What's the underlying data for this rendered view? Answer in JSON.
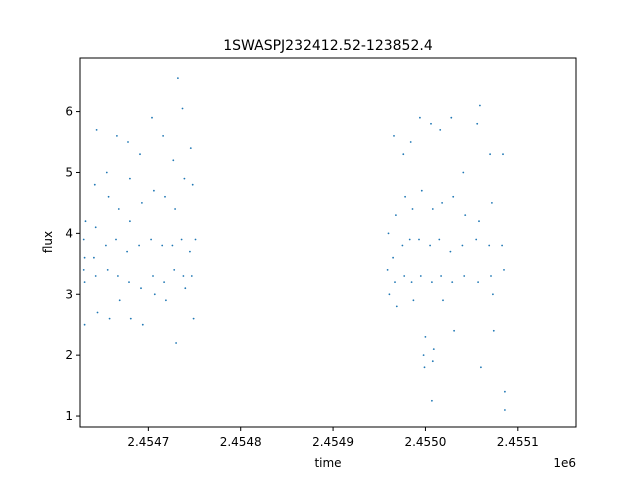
{
  "chart_data": {
    "type": "scatter",
    "title": "1SWASPJ232412.52-123852.4",
    "xlabel": "time",
    "ylabel": "flux",
    "x_offset_label": "1e6",
    "xlim": [
      2454626,
      2455163
    ],
    "ylim": [
      0.82,
      6.88
    ],
    "x_ticks": [
      2454700,
      2454800,
      2454900,
      2455000,
      2455100
    ],
    "x_tick_labels": [
      "2.4547",
      "2.4548",
      "2.4549",
      "2.4550",
      "2.4551"
    ],
    "y_ticks": [
      1,
      2,
      3,
      4,
      5,
      6
    ],
    "y_tick_labels": [
      "1",
      "2",
      "3",
      "4",
      "5",
      "6"
    ],
    "grid": false,
    "marker_color": "#1f77b4",
    "series": [
      {
        "points": [
          [
            2454630,
            3.4
          ],
          [
            2454630,
            3.9
          ],
          [
            2454631,
            3.6
          ],
          [
            2454631,
            3.2
          ],
          [
            2454632,
            4.2
          ],
          [
            2454631,
            2.5
          ],
          [
            2454641,
            3.6
          ],
          [
            2454642,
            4.8
          ],
          [
            2454643,
            3.3
          ],
          [
            2454644,
            5.7
          ],
          [
            2454645,
            2.7
          ],
          [
            2454643,
            4.1
          ],
          [
            2454654,
            3.8
          ],
          [
            2454655,
            5.0
          ],
          [
            2454656,
            3.4
          ],
          [
            2454657,
            4.6
          ],
          [
            2454658,
            2.6
          ],
          [
            2454665,
            3.9
          ],
          [
            2454666,
            5.6
          ],
          [
            2454667,
            3.3
          ],
          [
            2454668,
            4.4
          ],
          [
            2454669,
            2.9
          ],
          [
            2454677,
            3.7
          ],
          [
            2454678,
            5.5
          ],
          [
            2454679,
            3.2
          ],
          [
            2454680,
            4.9
          ],
          [
            2454681,
            2.6
          ],
          [
            2454680,
            4.2
          ],
          [
            2454690,
            3.8
          ],
          [
            2454691,
            5.3
          ],
          [
            2454692,
            3.1
          ],
          [
            2454693,
            4.5
          ],
          [
            2454694,
            2.5
          ],
          [
            2454703,
            3.9
          ],
          [
            2454704,
            5.9
          ],
          [
            2454705,
            3.3
          ],
          [
            2454706,
            4.7
          ],
          [
            2454707,
            3.0
          ],
          [
            2454715,
            3.8
          ],
          [
            2454716,
            5.6
          ],
          [
            2454717,
            3.2
          ],
          [
            2454718,
            4.6
          ],
          [
            2454719,
            2.9
          ],
          [
            2454726,
            3.8
          ],
          [
            2454727,
            5.2
          ],
          [
            2454728,
            3.4
          ],
          [
            2454729,
            4.4
          ],
          [
            2454730,
            2.2
          ],
          [
            2454732,
            6.55
          ],
          [
            2454736,
            3.9
          ],
          [
            2454737,
            6.05
          ],
          [
            2454738,
            3.3
          ],
          [
            2454739,
            4.9
          ],
          [
            2454740,
            3.1
          ],
          [
            2454745,
            3.7
          ],
          [
            2454746,
            5.4
          ],
          [
            2454747,
            3.3
          ],
          [
            2454748,
            4.8
          ],
          [
            2454749,
            2.6
          ],
          [
            2454751,
            3.9
          ],
          [
            2454959,
            3.4
          ],
          [
            2454960,
            4.0
          ],
          [
            2454961,
            3.0
          ],
          [
            2454965,
            3.6
          ],
          [
            2454966,
            5.6
          ],
          [
            2454967,
            3.2
          ],
          [
            2454968,
            4.3
          ],
          [
            2454969,
            2.8
          ],
          [
            2454975,
            3.8
          ],
          [
            2454976,
            5.3
          ],
          [
            2454977,
            3.3
          ],
          [
            2454978,
            4.6
          ],
          [
            2454983,
            3.9
          ],
          [
            2454984,
            5.5
          ],
          [
            2454985,
            3.2
          ],
          [
            2454986,
            4.4
          ],
          [
            2454987,
            2.9
          ],
          [
            2454993,
            3.9
          ],
          [
            2454994,
            5.9
          ],
          [
            2454995,
            3.3
          ],
          [
            2454996,
            4.7
          ],
          [
            2454998,
            2.0
          ],
          [
            2454999,
            1.8
          ],
          [
            2455000,
            2.3
          ],
          [
            2455005,
            3.8
          ],
          [
            2455006,
            5.8
          ],
          [
            2455007,
            3.2
          ],
          [
            2455008,
            4.4
          ],
          [
            2455009,
            2.1
          ],
          [
            2455008,
            1.9
          ],
          [
            2455007,
            1.25
          ],
          [
            2455015,
            3.9
          ],
          [
            2455016,
            5.7
          ],
          [
            2455017,
            3.3
          ],
          [
            2455018,
            4.5
          ],
          [
            2455019,
            2.9
          ],
          [
            2455027,
            3.7
          ],
          [
            2455028,
            5.9
          ],
          [
            2455029,
            3.2
          ],
          [
            2455030,
            4.6
          ],
          [
            2455031,
            2.4
          ],
          [
            2455040,
            3.8
          ],
          [
            2455041,
            5.0
          ],
          [
            2455042,
            3.3
          ],
          [
            2455043,
            4.3
          ],
          [
            2455055,
            3.9
          ],
          [
            2455056,
            5.8
          ],
          [
            2455057,
            3.2
          ],
          [
            2455058,
            4.2
          ],
          [
            2455059,
            6.1
          ],
          [
            2455060,
            1.8
          ],
          [
            2455069,
            3.8
          ],
          [
            2455070,
            5.3
          ],
          [
            2455071,
            3.3
          ],
          [
            2455072,
            4.5
          ],
          [
            2455073,
            3.0
          ],
          [
            2455074,
            2.4
          ],
          [
            2455083,
            3.8
          ],
          [
            2455084,
            5.3
          ],
          [
            2455085,
            3.4
          ],
          [
            2455086,
            1.1
          ],
          [
            2455086,
            1.4
          ]
        ]
      }
    ]
  }
}
